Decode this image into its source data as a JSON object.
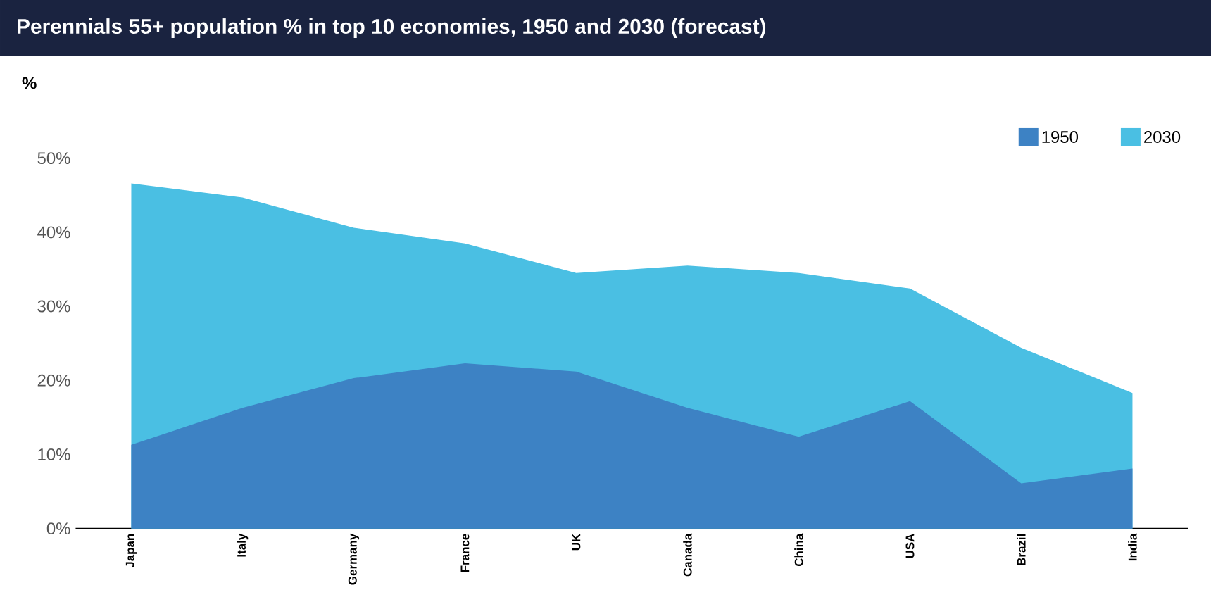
{
  "chart_data": {
    "type": "area",
    "title": "Perennials 55+ population % in top 10 economies, 1950 and 2030 (forecast)",
    "ylabel": "%",
    "categories": [
      "Japan",
      "Italy",
      "Germany",
      "France",
      "UK",
      "Canada",
      "China",
      "USA",
      "Brazil",
      "India"
    ],
    "series": [
      {
        "name": "1950",
        "color": "#3d82c4",
        "values": [
          11.3,
          16.3,
          20.3,
          22.3,
          21.2,
          16.3,
          12.4,
          17.2,
          6.1,
          8.1
        ]
      },
      {
        "name": "2030",
        "color": "#4abfe3",
        "values": [
          46.6,
          44.7,
          40.6,
          38.5,
          34.5,
          35.5,
          34.5,
          32.4,
          24.4,
          18.3
        ]
      }
    ],
    "ylim": [
      0,
      50
    ],
    "yticks": [
      {
        "value": 0,
        "label": "0%"
      },
      {
        "value": 10,
        "label": "10%"
      },
      {
        "value": 20,
        "label": "20%"
      },
      {
        "value": 30,
        "label": "30%"
      },
      {
        "value": 40,
        "label": "40%"
      },
      {
        "value": 50,
        "label": "50%"
      }
    ],
    "legend": "top right",
    "grid": false
  }
}
